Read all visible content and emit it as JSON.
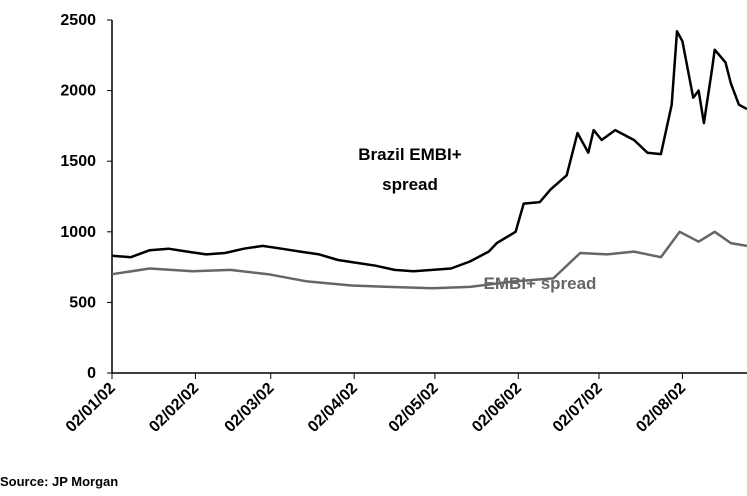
{
  "chart_data": {
    "type": "line",
    "source": "Source: JP Morgan",
    "annotations": [
      "Brazil EMBI+",
      "spread",
      "EMBI+ spread"
    ],
    "xlim": [
      "2002-01-02",
      "2002-08-26"
    ],
    "xticks": [
      {
        "value": "2002-01-02",
        "label": "02/01/02"
      },
      {
        "value": "2002-02-02",
        "label": "02/02/02"
      },
      {
        "value": "2002-03-02",
        "label": "02/03/02"
      },
      {
        "value": "2002-04-02",
        "label": "02/04/02"
      },
      {
        "value": "2002-05-02",
        "label": "02/05/02"
      },
      {
        "value": "2002-06-02",
        "label": "02/06/02"
      },
      {
        "value": "2002-07-02",
        "label": "02/07/02"
      },
      {
        "value": "2002-08-02",
        "label": "02/08/02"
      }
    ],
    "ylim": [
      0,
      2500
    ],
    "yticks": [
      0,
      500,
      1000,
      1500,
      2000,
      2500
    ],
    "series": [
      {
        "name": "Brazil EMBI+ spread",
        "color": "#000000",
        "x": [
          "2002-01-02",
          "2002-01-09",
          "2002-01-16",
          "2002-01-23",
          "2002-01-30",
          "2002-02-06",
          "2002-02-13",
          "2002-02-20",
          "2002-02-27",
          "2002-03-06",
          "2002-03-13",
          "2002-03-20",
          "2002-03-27",
          "2002-04-03",
          "2002-04-10",
          "2002-04-17",
          "2002-04-24",
          "2002-05-01",
          "2002-05-08",
          "2002-05-15",
          "2002-05-22",
          "2002-05-25",
          "2002-06-01",
          "2002-06-04",
          "2002-06-10",
          "2002-06-14",
          "2002-06-20",
          "2002-06-24",
          "2002-06-28",
          "2002-06-30",
          "2002-07-03",
          "2002-07-08",
          "2002-07-15",
          "2002-07-20",
          "2002-07-25",
          "2002-07-29",
          "2002-07-31",
          "2002-08-02",
          "2002-08-06",
          "2002-08-08",
          "2002-08-10",
          "2002-08-13",
          "2002-08-14",
          "2002-08-18",
          "2002-08-20",
          "2002-08-23",
          "2002-08-26"
        ],
        "values": [
          830,
          820,
          870,
          880,
          860,
          840,
          850,
          880,
          900,
          880,
          860,
          840,
          800,
          780,
          760,
          730,
          720,
          730,
          740,
          790,
          860,
          920,
          1000,
          1200,
          1210,
          1300,
          1400,
          1700,
          1560,
          1720,
          1650,
          1720,
          1650,
          1560,
          1550,
          1900,
          2420,
          2350,
          1950,
          2000,
          1770,
          2150,
          2290,
          2200,
          2050,
          1900,
          1870
        ]
      },
      {
        "name": "EMBI+ spread",
        "color": "#666666",
        "x": [
          "2002-01-02",
          "2002-01-16",
          "2002-02-01",
          "2002-02-15",
          "2002-03-01",
          "2002-03-15",
          "2002-04-01",
          "2002-04-15",
          "2002-05-01",
          "2002-05-15",
          "2002-06-01",
          "2002-06-15",
          "2002-06-25",
          "2002-07-05",
          "2002-07-15",
          "2002-07-25",
          "2002-08-01",
          "2002-08-08",
          "2002-08-14",
          "2002-08-20",
          "2002-08-26"
        ],
        "values": [
          700,
          740,
          720,
          730,
          700,
          650,
          620,
          610,
          600,
          610,
          650,
          670,
          850,
          840,
          860,
          820,
          1000,
          930,
          1000,
          920,
          900
        ]
      }
    ]
  }
}
